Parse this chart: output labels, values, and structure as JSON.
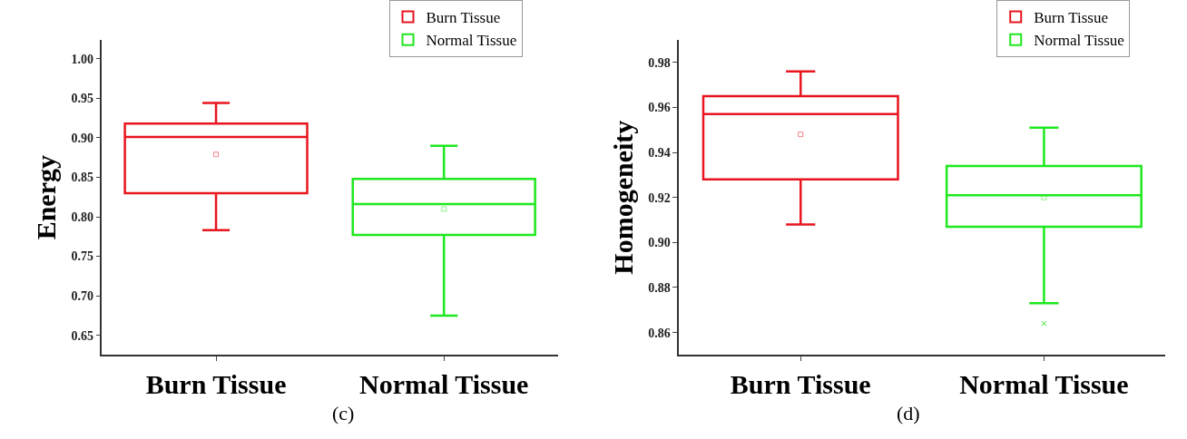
{
  "chart_data": [
    {
      "type": "box",
      "ylabel": "Energy",
      "categories": [
        "Burn Tissue",
        "Normal Tissue"
      ],
      "ylim": [
        0.625,
        1.024
      ],
      "yticks": [
        {
          "value": 0.65,
          "label": "0.65"
        },
        {
          "value": 0.7,
          "label": "0.70"
        },
        {
          "value": 0.75,
          "label": "0.75"
        },
        {
          "value": 0.8,
          "label": "0.80"
        },
        {
          "value": 0.85,
          "label": "0.85"
        },
        {
          "value": 0.9,
          "label": "0.90"
        },
        {
          "value": 0.95,
          "label": "0.95"
        },
        {
          "value": 1.0,
          "label": "1.00"
        }
      ],
      "series": [
        {
          "name": "Burn Tissue",
          "color": "#e8141e",
          "boxes": [
            {
              "low": 0.783,
              "q1": 0.83,
              "median": 0.901,
              "q3": 0.918,
              "high": 0.944,
              "mean": 0.879
            },
            null
          ]
        },
        {
          "name": "Normal Tissue",
          "color": "#1ee81e",
          "boxes": [
            null,
            {
              "low": 0.675,
              "q1": 0.777,
              "median": 0.816,
              "q3": 0.848,
              "high": 0.89,
              "mean": 0.81
            }
          ]
        }
      ],
      "legend": "top right",
      "annotations": [
        "(c)"
      ]
    },
    {
      "type": "box",
      "ylabel": "Homogeneity",
      "categories": [
        "Burn Tissue",
        "Normal Tissue"
      ],
      "ylim": [
        0.85,
        0.99
      ],
      "yticks": [
        {
          "value": 0.86,
          "label": "0.86"
        },
        {
          "value": 0.88,
          "label": "0.88"
        },
        {
          "value": 0.9,
          "label": "0.90"
        },
        {
          "value": 0.92,
          "label": "0.92"
        },
        {
          "value": 0.94,
          "label": "0.94"
        },
        {
          "value": 0.96,
          "label": "0.96"
        },
        {
          "value": 0.98,
          "label": "0.98"
        }
      ],
      "series": [
        {
          "name": "Burn Tissue",
          "color": "#e8141e",
          "boxes": [
            {
              "low": 0.908,
              "q1": 0.928,
              "median": 0.957,
              "q3": 0.965,
              "high": 0.976,
              "mean": 0.948
            },
            null
          ]
        },
        {
          "name": "Normal Tissue",
          "color": "#1ee81e",
          "boxes": [
            null,
            {
              "low": 0.873,
              "q1": 0.907,
              "median": 0.921,
              "q3": 0.934,
              "high": 0.951,
              "mean": 0.92,
              "outliers": [
                0.864
              ]
            }
          ]
        }
      ],
      "legend": "top right",
      "annotations": [
        "(d)"
      ]
    }
  ]
}
